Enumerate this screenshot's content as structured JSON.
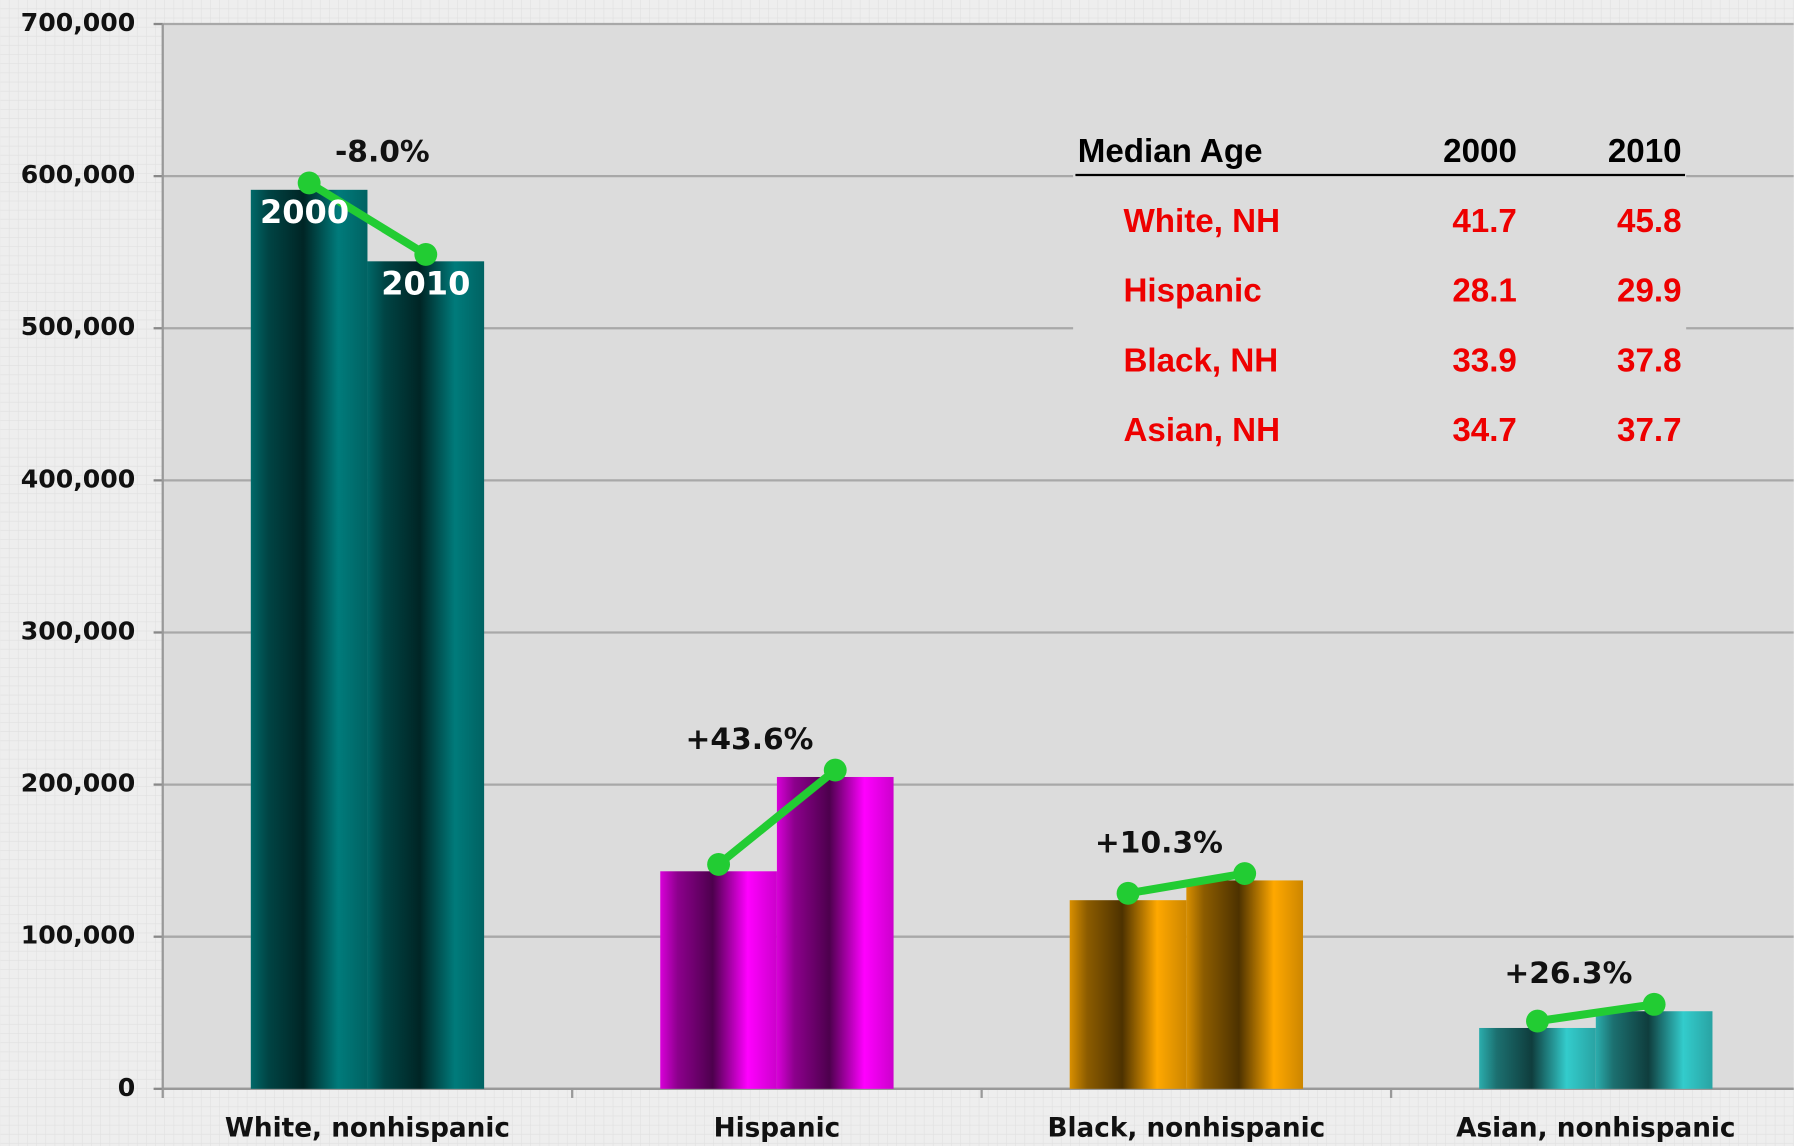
{
  "chart_data": {
    "type": "bar",
    "categories": [
      "White, nonhispanic",
      "Hispanic",
      "Black, nonhispanic",
      "Asian, nonhispanic"
    ],
    "colors": [
      "#007b7b",
      "#ff00ff",
      "#ffa800",
      "#33cccc"
    ],
    "series": [
      {
        "name": "2000",
        "values": [
          591000,
          143000,
          124000,
          40000
        ]
      },
      {
        "name": "2010",
        "values": [
          544000,
          205000,
          137000,
          51000
        ]
      }
    ],
    "line_color": "#22cc33",
    "annotations": [
      "-8.0%",
      "+43.6%",
      "+10.3%",
      "+26.3%"
    ],
    "ylim": [
      0,
      700000
    ],
    "yticks": [
      0,
      {
        "value": 100000,
        "label": "100,000"
      },
      {
        "value": 200000,
        "label": "200,000"
      },
      {
        "value": 300000,
        "label": "300,000"
      },
      {
        "value": 400000,
        "label": "400,000"
      },
      {
        "value": 500000,
        "label": "500,000"
      },
      {
        "value": 600000,
        "label": "600,000"
      },
      {
        "value": 700000,
        "label": "700,000"
      }
    ],
    "grid": true,
    "table": {
      "header": [
        "Median Age",
        "2000",
        "2010"
      ],
      "rows": [
        [
          "White, NH",
          41.7,
          45.8
        ],
        [
          "Hispanic",
          28.1,
          29.9
        ],
        [
          "Black, NH",
          33.9,
          37.8
        ],
        [
          "Asian, NH",
          34.7,
          37.7
        ]
      ]
    }
  }
}
